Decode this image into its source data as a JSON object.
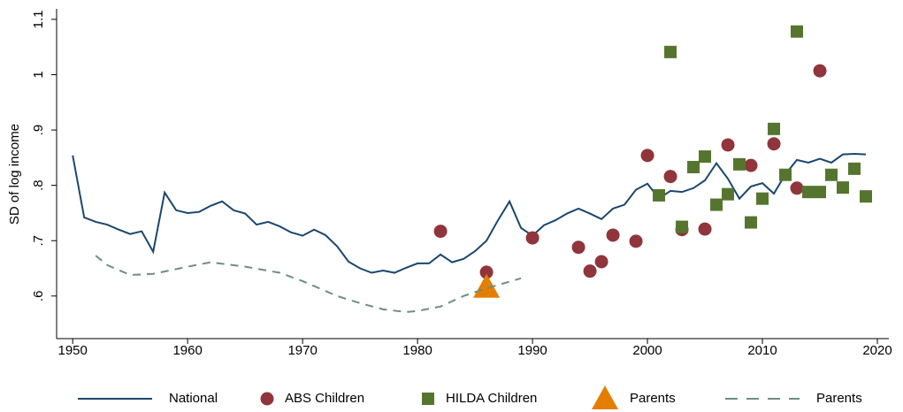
{
  "chart_data": {
    "type": "line",
    "y_label": "SD of log income",
    "xlim": [
      1948.6,
      2021
    ],
    "xticks": [
      1950,
      1960,
      1970,
      1980,
      1990,
      2000,
      2010,
      2020
    ],
    "ylim": [
      0.523,
      1.119
    ],
    "yticks": [
      {
        "value": 0.6,
        "label": ".6"
      },
      {
        "value": 0.7,
        "label": ".7"
      },
      {
        "value": 0.8,
        "label": ".8"
      },
      {
        "value": 0.9,
        "label": ".9"
      },
      1,
      1.1
    ],
    "series": [
      {
        "name": "National",
        "type": "line",
        "linestyle": "solid",
        "color": "#1a476f",
        "x": [
          1950,
          1951,
          1952,
          1953,
          1954,
          1955,
          1956,
          1957,
          1958,
          1959,
          1960,
          1961,
          1962,
          1963,
          1964,
          1965,
          1966,
          1967,
          1968,
          1969,
          1970,
          1971,
          1972,
          1973,
          1974,
          1975,
          1976,
          1977,
          1978,
          1979,
          1980,
          1981,
          1982,
          1983,
          1984,
          1985,
          1986,
          1987,
          1988,
          1989,
          1990,
          1991,
          1992,
          1993,
          1994,
          1995,
          1996,
          1997,
          1998,
          1999,
          2000,
          2001,
          2002,
          2003,
          2004,
          2005,
          2006,
          2007,
          2008,
          2009,
          2010,
          2011,
          2012,
          2013,
          2014,
          2015,
          2016,
          2017,
          2018,
          2019
        ],
        "values": [
          0.854,
          0.742,
          0.734,
          0.729,
          0.72,
          0.712,
          0.717,
          0.68,
          0.787,
          0.755,
          0.75,
          0.752,
          0.763,
          0.771,
          0.755,
          0.749,
          0.729,
          0.734,
          0.726,
          0.715,
          0.709,
          0.72,
          0.71,
          0.69,
          0.662,
          0.65,
          0.642,
          0.646,
          0.642,
          0.651,
          0.659,
          0.659,
          0.675,
          0.661,
          0.667,
          0.681,
          0.7,
          0.737,
          0.771,
          0.723,
          0.709,
          0.728,
          0.737,
          0.749,
          0.758,
          0.749,
          0.739,
          0.758,
          0.765,
          0.792,
          0.803,
          0.776,
          0.79,
          0.788,
          0.795,
          0.809,
          0.84,
          0.812,
          0.776,
          0.798,
          0.804,
          0.785,
          0.82,
          0.846,
          0.841,
          0.848,
          0.841,
          0.856,
          0.857,
          0.856
        ]
      },
      {
        "name": "ABS Children",
        "type": "scatter",
        "marker": "circle",
        "color": "#90353b",
        "x": [
          1982,
          1986,
          1990,
          1994,
          1995,
          1996,
          1997,
          1999,
          2000,
          2002,
          2003,
          2005,
          2007,
          2009,
          2011,
          2013,
          2015
        ],
        "values": [
          0.717,
          0.643,
          0.705,
          0.688,
          0.645,
          0.662,
          0.71,
          0.699,
          0.854,
          0.816,
          0.72,
          0.721,
          0.873,
          0.836,
          0.875,
          0.795,
          1.007
        ]
      },
      {
        "name": "HILDA Children",
        "type": "scatter",
        "marker": "square",
        "color": "#55752f",
        "x": [
          2001,
          2002,
          2003,
          2004,
          2005,
          2006,
          2007,
          2008,
          2009,
          2010,
          2011,
          2012,
          2013,
          2014,
          2015,
          2016,
          2017,
          2018,
          2019
        ],
        "values": [
          0.782,
          1.041,
          0.725,
          0.833,
          0.852,
          0.765,
          0.784,
          0.838,
          0.733,
          0.776,
          0.902,
          0.819,
          1.078,
          0.788,
          0.788,
          0.819,
          0.796,
          0.83,
          0.78
        ]
      },
      {
        "name": "Parents",
        "type": "scatter",
        "marker": "triangle",
        "color": "#e37e00",
        "x": [
          1986
        ],
        "values": [
          0.616
        ]
      },
      {
        "name": "Parents",
        "type": "line",
        "linestyle": "dashed",
        "color": "#6e8e84",
        "x": [
          1952,
          1953,
          1955,
          1957,
          1960,
          1962,
          1965,
          1968,
          1970,
          1973,
          1975,
          1977,
          1979,
          1980,
          1982,
          1984,
          1986,
          1989
        ],
        "values": [
          0.673,
          0.656,
          0.638,
          0.64,
          0.653,
          0.661,
          0.653,
          0.642,
          0.627,
          0.6,
          0.587,
          0.576,
          0.571,
          0.573,
          0.581,
          0.6,
          0.614,
          0.632
        ]
      }
    ]
  }
}
